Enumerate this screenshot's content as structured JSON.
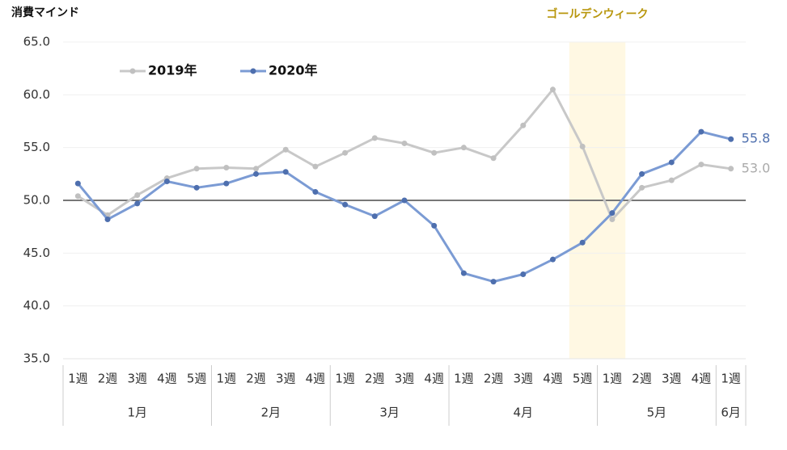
{
  "chart_data": {
    "type": "line",
    "ylabel": "消費マインド",
    "categories": [
      "1週",
      "2週",
      "3週",
      "4週",
      "5週",
      "1週",
      "2週",
      "3週",
      "4週",
      "1週",
      "2週",
      "3週",
      "4週",
      "1週",
      "2週",
      "3週",
      "4週",
      "5週",
      "1週",
      "2週",
      "3週",
      "4週",
      "1週"
    ],
    "groups": [
      "1月",
      "1月",
      "1月",
      "1月",
      "1月",
      "2月",
      "2月",
      "2月",
      "2月",
      "3月",
      "3月",
      "3月",
      "3月",
      "4月",
      "4月",
      "4月",
      "4月",
      "4月",
      "5月",
      "5月",
      "5月",
      "5月",
      "6月"
    ],
    "series": [
      {
        "name": "2019年",
        "color": "#c8c8c8",
        "marker_color": "#c0c0c0",
        "values": [
          50.4,
          48.6,
          50.5,
          52.1,
          53.0,
          53.1,
          53.0,
          54.8,
          53.2,
          54.5,
          55.9,
          55.4,
          54.5,
          55.0,
          54.0,
          57.1,
          60.5,
          55.1,
          48.2,
          51.2,
          51.9,
          53.4,
          53.0
        ],
        "value_labels": [
          null,
          null,
          null,
          null,
          null,
          null,
          null,
          null,
          null,
          null,
          null,
          null,
          null,
          null,
          null,
          null,
          null,
          null,
          null,
          null,
          null,
          null,
          "53.0"
        ]
      },
      {
        "name": "2020年",
        "color": "#7b9bd4",
        "marker_color": "#4e6fae",
        "values": [
          51.6,
          48.2,
          49.7,
          51.8,
          51.2,
          51.6,
          52.5,
          52.7,
          50.8,
          49.6,
          48.5,
          50.0,
          47.6,
          43.1,
          42.3,
          43.0,
          44.4,
          46.0,
          48.8,
          52.5,
          53.6,
          56.5,
          55.8
        ],
        "value_labels": [
          null,
          null,
          null,
          null,
          null,
          null,
          null,
          null,
          null,
          null,
          null,
          null,
          null,
          null,
          null,
          null,
          null,
          null,
          null,
          null,
          null,
          null,
          "55.8"
        ]
      }
    ],
    "ylim": [
      35,
      65
    ],
    "yticks": [
      {
        "value": 35,
        "label": "35.0"
      },
      {
        "value": 40,
        "label": "40.0"
      },
      {
        "value": 45,
        "label": "45.0"
      },
      {
        "value": 50,
        "label": "50.0"
      },
      {
        "value": 55,
        "label": "55.0"
      },
      {
        "value": 60,
        "label": "60.0"
      },
      {
        "value": 65,
        "label": "65.0"
      }
    ],
    "grid": true,
    "reference_line": 50,
    "legend": "upper left",
    "highlight": {
      "label": "ゴールデンウィーク",
      "category_index": [
        17,
        18
      ],
      "color": "#fff8e3",
      "label_color": "#b8960c"
    }
  }
}
